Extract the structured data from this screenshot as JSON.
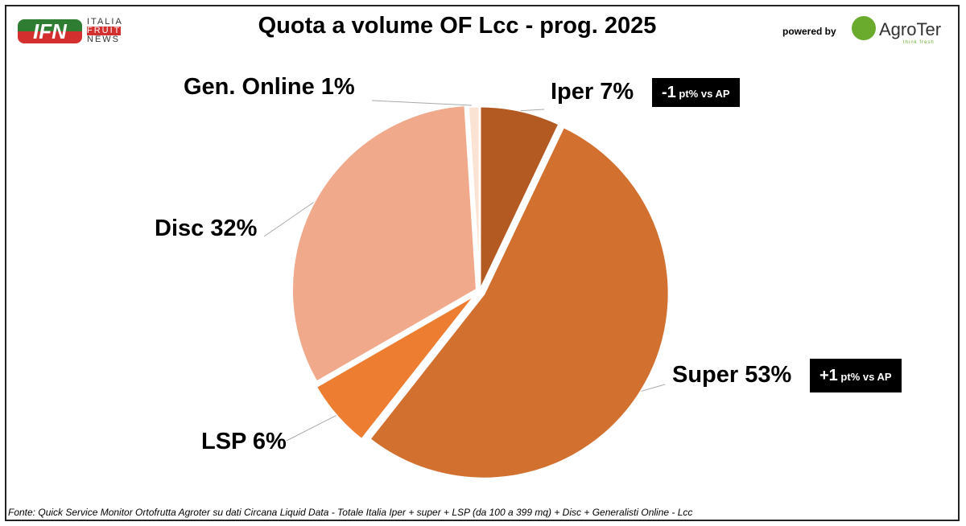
{
  "header": {
    "title": "Quota a volume OF Lcc - prog. 2025",
    "logo_left": "IFN",
    "logo_left_words": [
      "ITALIA",
      "FRUIT",
      "NEWS"
    ],
    "powered_by": "powered by",
    "logo_right": "AgroTer",
    "logo_right_tagline": "think fresh"
  },
  "chart_data": {
    "type": "pie",
    "title": "Quota a volume OF Lcc - prog. 2025",
    "slices": [
      {
        "label": "Iper 7%",
        "name": "Iper",
        "value": 7,
        "color": "#b35a22"
      },
      {
        "label": "Super 53%",
        "name": "Super",
        "value": 53,
        "color": "#d2702f"
      },
      {
        "label": "LSP 6%",
        "name": "LSP",
        "value": 6,
        "color": "#ed7d31"
      },
      {
        "label": "Disc 32%",
        "name": "Disc",
        "value": 32,
        "color": "#f0a98a"
      },
      {
        "label": "Gen. Online 1%",
        "name": "Gen. Online",
        "value": 1,
        "color": "#fbe3d3"
      }
    ],
    "annotations": [
      {
        "slice": "Iper",
        "main": "-1",
        "rest": " pt% vs AP"
      },
      {
        "slice": "Super",
        "main": "+1",
        "rest": " pt% vs AP"
      }
    ]
  },
  "footer": "Fonte: Quick Service Monitor Ortofrutta Agroter su dati Circana Liquid Data - Totale Italia Iper + super + LSP (da 100 a 399 mq) + Disc + Generalisti Online - Lcc"
}
